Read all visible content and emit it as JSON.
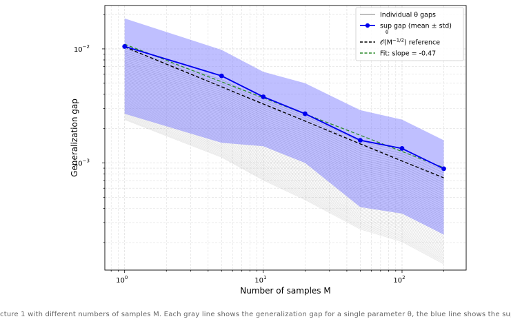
{
  "chart_data": {
    "type": "line",
    "xlabel": "Number of samples M",
    "ylabel": "Generalization gap",
    "xscale": "log",
    "yscale": "log",
    "xlim": [
      0.72,
      290
    ],
    "ylim": [
      0.000115,
      0.024
    ],
    "grid": true,
    "legend_position": "top-right",
    "x_ticks": [
      {
        "value": 1,
        "base": "10",
        "exp": "0"
      },
      {
        "value": 10,
        "base": "10",
        "exp": "1"
      },
      {
        "value": 100,
        "base": "10",
        "exp": "2"
      }
    ],
    "y_ticks": [
      {
        "value": 0.01,
        "base": "10",
        "exp": "−2"
      },
      {
        "value": 0.001,
        "base": "10",
        "exp": "−3"
      }
    ],
    "x": [
      1,
      5,
      10,
      20,
      50,
      100,
      200
    ],
    "series": [
      {
        "name": "sup gap (mean ± std)",
        "name_subscript": "θ",
        "color": "#0000ee",
        "values": [
          0.0105,
          0.0058,
          0.0038,
          0.0027,
          0.00158,
          0.00134,
          0.00089
        ],
        "band_upper": [
          0.0185,
          0.0098,
          0.0063,
          0.005,
          0.0029,
          0.0024,
          0.00158
        ],
        "band_lower": [
          0.0027,
          0.0015,
          0.0014,
          0.001,
          0.00041,
          0.00036,
          0.000235
        ],
        "band_color": "#7070ff"
      },
      {
        "name": "𝒪(M^{−1/2}) reference",
        "color": "#000000",
        "style": "dashed",
        "values": [
          0.0104,
          0.00465,
          0.00329,
          0.00233,
          0.00147,
          0.00104,
          0.00074
        ]
      },
      {
        "name": "Fit: slope = -0.47",
        "color": "#2a8a2a",
        "style": "dashed",
        "values": [
          0.011,
          0.00515,
          0.00372,
          0.00269,
          0.00175,
          0.00126,
          0.00091
        ]
      }
    ],
    "individual_curves": {
      "name": "Individual θ gaps",
      "color": "#999999",
      "count": 55,
      "start_range": [
        0.0024,
        0.01
      ],
      "end_range": [
        0.00013,
        0.00086
      ]
    }
  },
  "legend": {
    "individual_label": "Individual θ gaps",
    "sup_label": "sup gap (mean ± std)",
    "sup_subscript": "θ",
    "ref_label": "𝒪(M",
    "ref_exp": "−1/2",
    "ref_rest": ") reference",
    "fit_label": "Fit: slope = -0.47"
  },
  "caption": "cture 1 with different numbers of samples M. Each gray line shows the generalization gap for a single parameter θ, the blue line shows the supremum over θ"
}
